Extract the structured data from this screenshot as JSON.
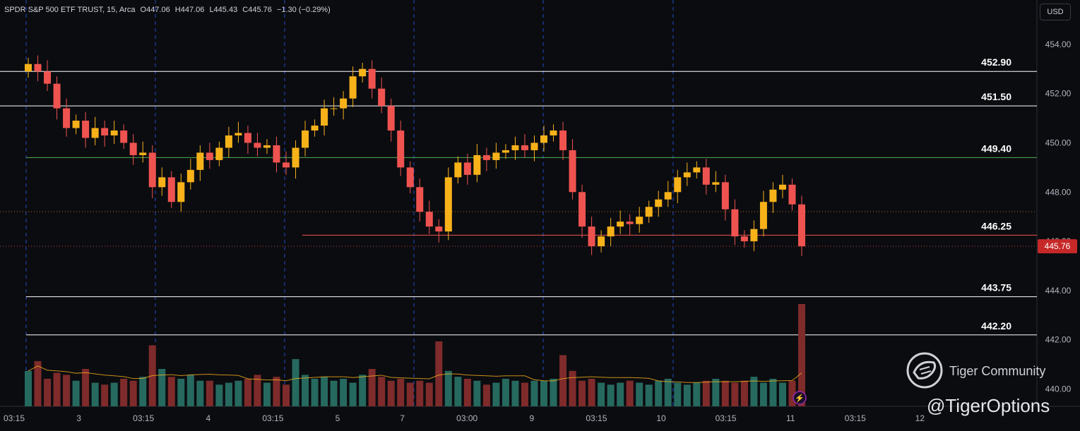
{
  "header": {
    "symbol": "SPDR S&P 500 ETF TRUST, 15, Arca",
    "open": "O447.06",
    "high": "H447.06",
    "low": "L445.43",
    "close": "C445.76",
    "change": "−1.30 (−0.29%)"
  },
  "currency_button": "USD",
  "watermark": {
    "name": "Tiger Community",
    "handle": "@TigerOptions"
  },
  "colors": {
    "up": "#f7b21a",
    "down": "#ef5350",
    "vol_up": "#26695f",
    "vol_down": "#7f2b2b",
    "background": "#0b0c10"
  },
  "chart_data": {
    "type": "candlestick",
    "y_axis": {
      "ticks": [
        "454.00",
        "452.00",
        "450.00",
        "448.00",
        "446.00",
        "444.00",
        "442.00",
        "440.00"
      ],
      "range": [
        439.3,
        455.8
      ]
    },
    "x_axis": {
      "ticks": [
        "03:15",
        "3",
        "03:15",
        "4",
        "03:15",
        "5",
        "7",
        "03:00",
        "9",
        "03:15",
        "10",
        "03:15",
        "11",
        "03:15",
        "12"
      ]
    },
    "price_label": "445.76",
    "horizontal_levels": [
      {
        "value": 452.9,
        "label": "452.90",
        "color": "#ffffff"
      },
      {
        "value": 451.5,
        "label": "451.50",
        "color": "#ffffff"
      },
      {
        "value": 449.4,
        "label": "449.40",
        "color": "#4caf50"
      },
      {
        "value": 446.25,
        "label": "446.25",
        "color": "#ef5350"
      },
      {
        "value": 443.75,
        "label": "443.75",
        "color": "#ffffff"
      },
      {
        "value": 442.2,
        "label": "442.20",
        "color": "#ffffff"
      }
    ],
    "close_series": [
      453.2,
      452.9,
      452.4,
      451.4,
      450.6,
      450.9,
      450.2,
      450.6,
      450.3,
      450.5,
      450.0,
      449.5,
      449.6,
      448.2,
      448.6,
      447.6,
      448.4,
      448.9,
      449.6,
      449.3,
      449.8,
      450.3,
      450.4,
      450.0,
      449.8,
      449.9,
      449.2,
      449.0,
      449.8,
      450.5,
      450.7,
      451.4,
      451.4,
      451.8,
      452.7,
      453.0,
      452.2,
      451.5,
      450.5,
      449.0,
      448.2,
      447.2,
      446.6,
      446.4,
      448.6,
      449.2,
      448.7,
      449.5,
      449.3,
      449.6,
      449.7,
      449.9,
      449.7,
      450.0,
      450.3,
      450.5,
      449.7,
      448.0,
      446.6,
      445.8,
      446.2,
      446.6,
      446.8,
      446.7,
      447.0,
      447.4,
      447.7,
      448.0,
      448.6,
      448.8,
      449.0,
      448.3,
      448.4,
      447.3,
      446.2,
      446.0,
      446.5,
      447.6,
      448.1,
      448.3,
      447.5,
      445.8
    ],
    "series": [
      {
        "name": "Volume",
        "values": [
          1.8,
          2.3,
          1.4,
          1.7,
          1.6,
          1.3,
          1.9,
          1.2,
          1.1,
          1.2,
          1.4,
          1.3,
          1.5,
          3.1,
          1.9,
          1.5,
          1.4,
          1.6,
          1.3,
          1.3,
          1.1,
          1.2,
          1.3,
          1.4,
          1.6,
          1.2,
          1.5,
          1.1,
          2.4,
          1.6,
          1.4,
          1.5,
          1.3,
          1.4,
          1.2,
          1.6,
          1.9,
          1.5,
          1.3,
          1.4,
          1.2,
          1.3,
          1.2,
          3.3,
          1.8,
          1.5,
          1.4,
          1.3,
          1.1,
          1.2,
          1.4,
          1.3,
          1.2,
          1.3,
          1.3,
          1.4,
          2.6,
          1.8,
          1.3,
          1.4,
          1.2,
          1.1,
          1.2,
          1.3,
          1.2,
          1.1,
          1.3,
          1.4,
          1.2,
          1.1,
          1.2,
          1.3,
          1.4,
          1.3,
          1.2,
          1.3,
          1.5,
          1.2,
          1.4,
          1.2,
          1.3,
          5.2
        ]
      }
    ]
  }
}
